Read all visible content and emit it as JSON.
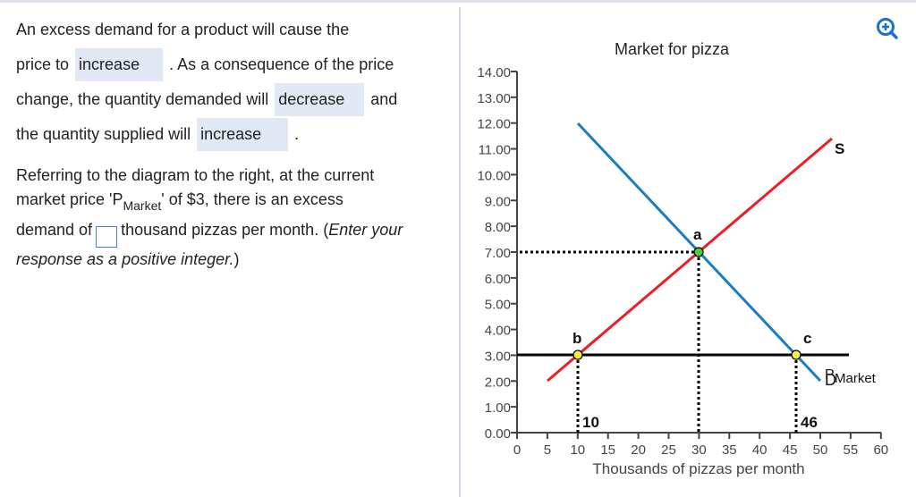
{
  "question": {
    "part1": {
      "line1": "An excess demand for a product will cause the",
      "pre1": "price to",
      "answer1": "increase",
      "post1": ".  As a consequence of the price",
      "pre2": "change, the quantity demanded will",
      "answer2": "decrease",
      "post2": "and",
      "pre3": "the quantity supplied will",
      "answer3": "increase",
      "post3": "."
    },
    "part2": {
      "line1": "Referring to the diagram to the right, at the current",
      "pre_sub": "market price 'P",
      "sub": "Market",
      "post_sub": "' of $3,  there is an excess",
      "pre_input": "demand of",
      "post_input": "thousand pizzas per month. (",
      "italic": "Enter your response as a positive integer.",
      "close": ")",
      "input_value": ""
    }
  },
  "toolbar": {
    "zoom_icon": "zoom-in-icon"
  },
  "colors": {
    "supply": "#ee1c25",
    "demand": "#1a7dc4",
    "equilibrium_point": "#4cd137",
    "market_point": "#f7f03c",
    "answer_bg": "#e2e8f3",
    "input_border": "#4a7fd1",
    "zoom_icon": "#1a6fd1"
  },
  "chart_data": {
    "type": "line",
    "title": "Market for pizza",
    "xlabel": "Thousands of pizzas per month",
    "ylabel": "",
    "xlim": [
      0,
      60
    ],
    "ylim": [
      0,
      14
    ],
    "x_ticks": [
      "0",
      "5",
      "10",
      "15",
      "20",
      "25",
      "30",
      "35",
      "40",
      "45",
      "50",
      "55",
      "60"
    ],
    "y_ticks": [
      "0.00",
      "1.00",
      "2.00",
      "3.00",
      "4.00",
      "5.00",
      "6.00",
      "7.00",
      "8.00",
      "9.00",
      "10.00",
      "11.00",
      "12.00",
      "13.00",
      "14.00"
    ],
    "series": [
      {
        "name": "S",
        "color": "#ee1c25",
        "points": [
          [
            5,
            2
          ],
          [
            52,
            11.4
          ]
        ]
      },
      {
        "name": "D",
        "label_sub": "Market",
        "color": "#1a7dc4",
        "points": [
          [
            10,
            12
          ],
          [
            50,
            2
          ]
        ]
      },
      {
        "name": "P",
        "label_sub": "Market",
        "color": "#000000",
        "points": [
          [
            0,
            3
          ],
          [
            55,
            3
          ]
        ]
      }
    ],
    "points": [
      {
        "label": "a",
        "x": 30,
        "y": 7,
        "color": "#4cd137"
      },
      {
        "label": "b",
        "x": 10,
        "y": 3,
        "color": "#f7f03c"
      },
      {
        "label": "c",
        "x": 46,
        "y": 3,
        "color": "#f7f03c"
      }
    ],
    "annotations": [
      {
        "text": "10",
        "x": 10,
        "y": 0
      },
      {
        "text": "46",
        "x": 46,
        "y": 0
      }
    ],
    "guides": [
      {
        "type": "h-dotted",
        "y": 7,
        "x_to": 30
      },
      {
        "type": "v-dotted",
        "x": 30,
        "y_to": 7
      },
      {
        "type": "v-dotted",
        "x": 10,
        "y_to": 3
      },
      {
        "type": "v-dotted",
        "x": 46,
        "y_to": 3
      }
    ],
    "grid": false,
    "legend": "inline labels"
  }
}
